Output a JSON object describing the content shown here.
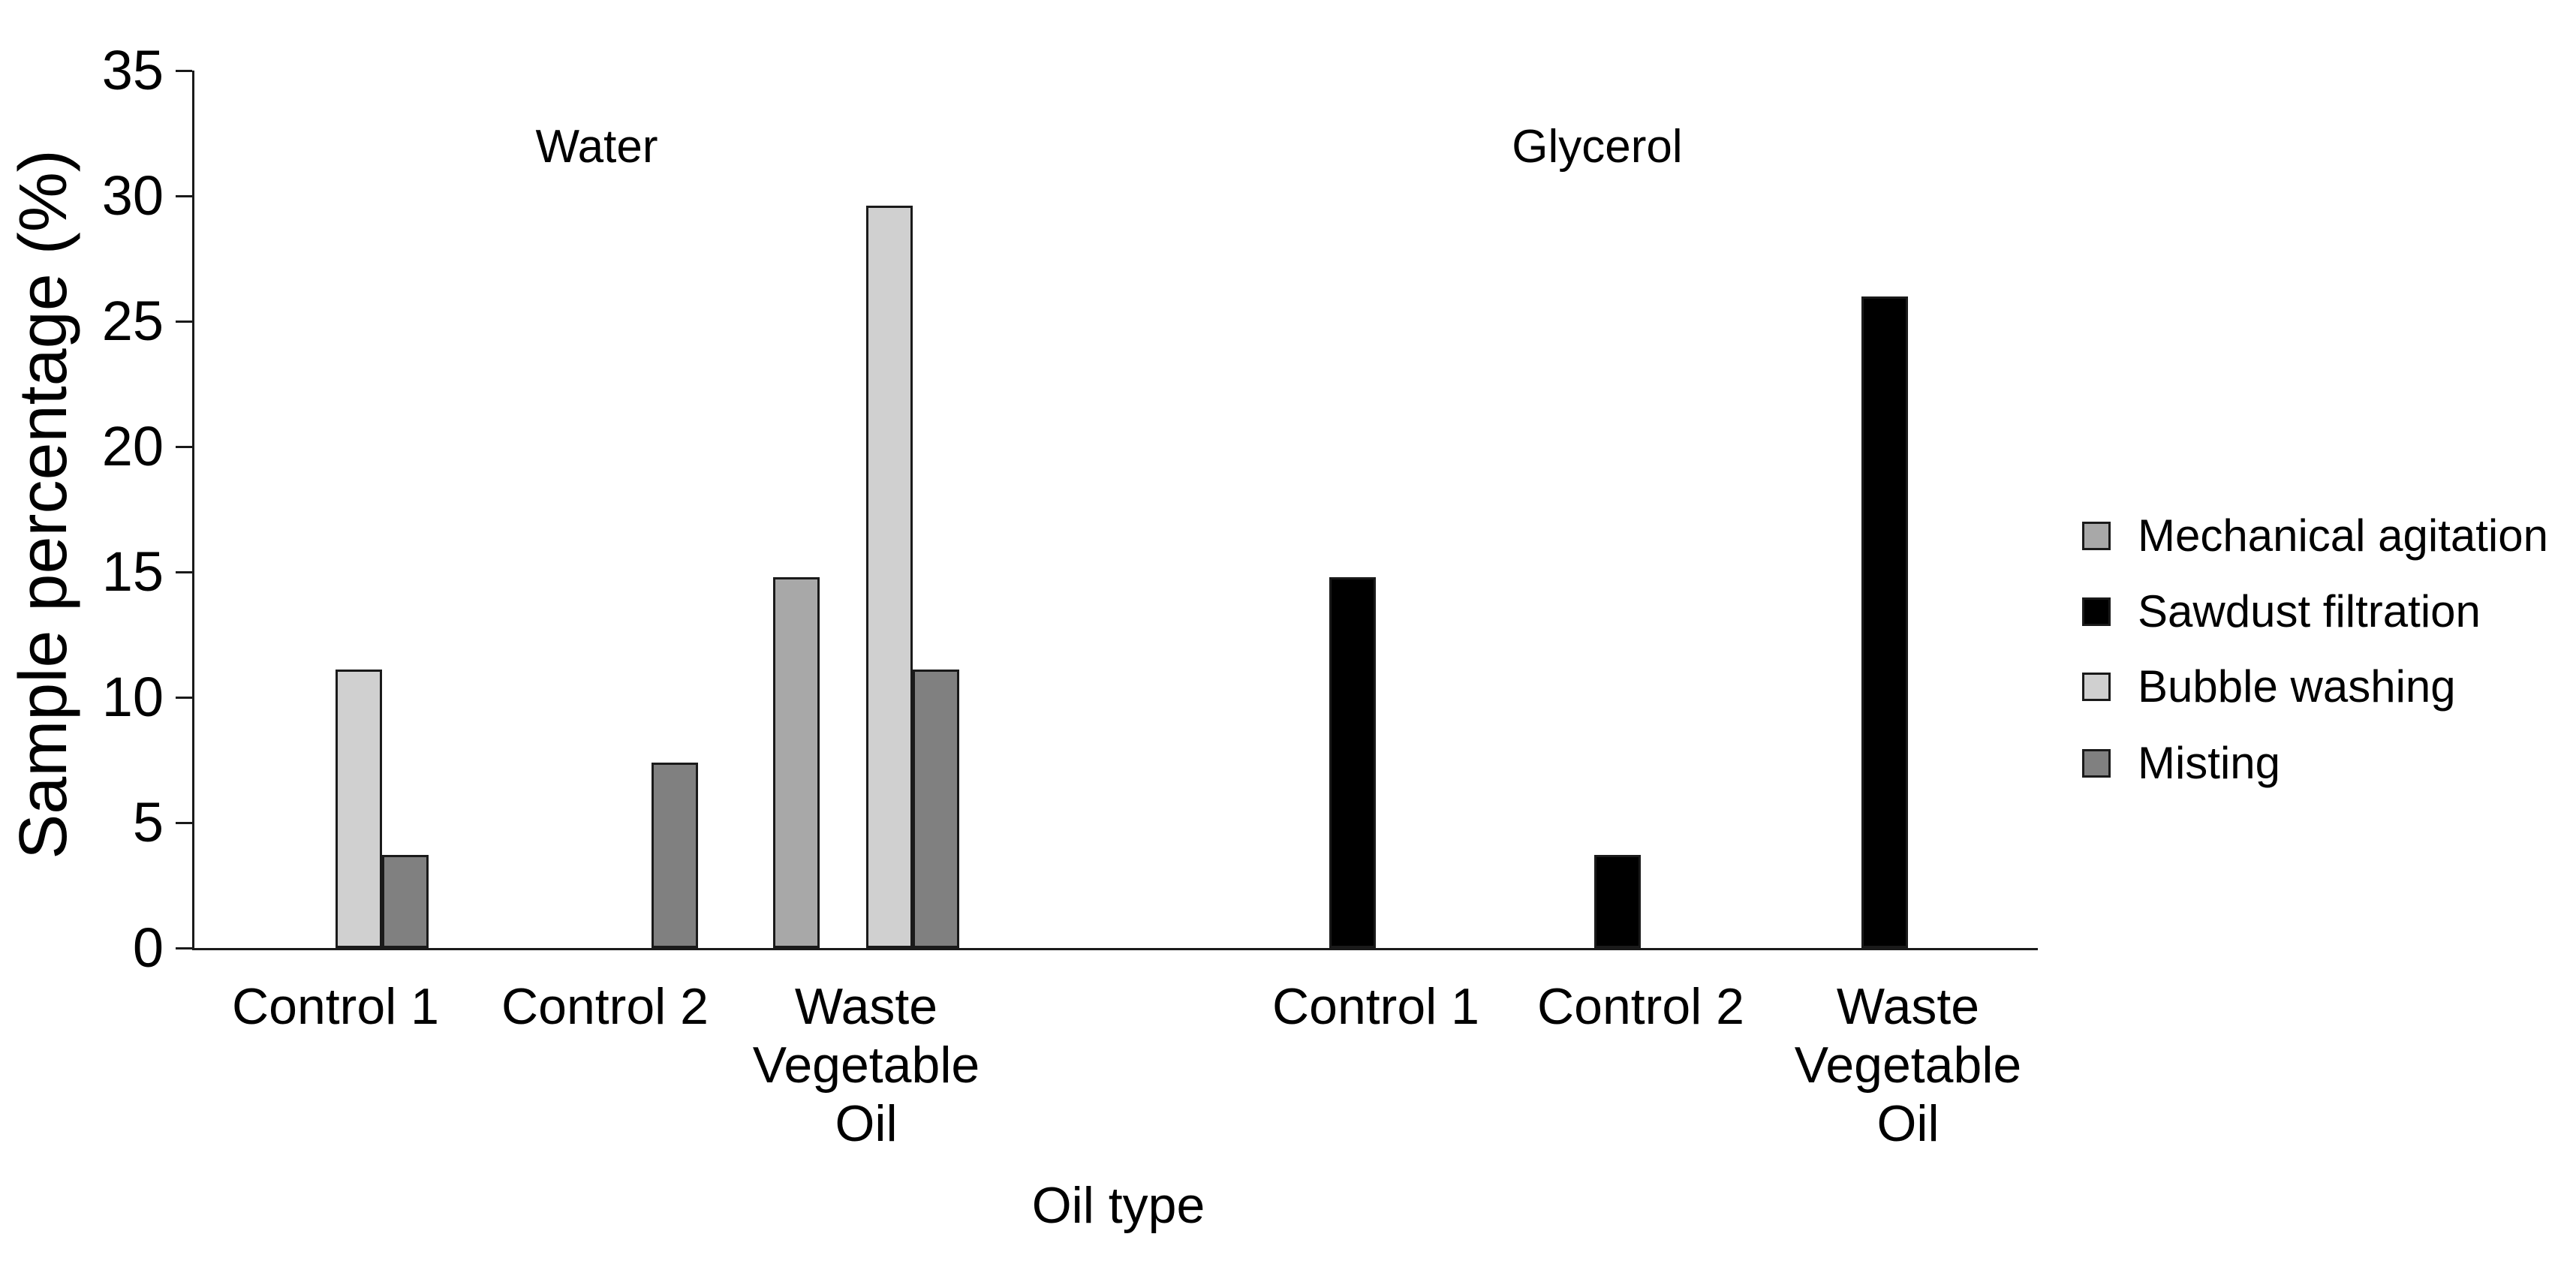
{
  "chart_data": {
    "type": "bar",
    "title": "",
    "ylabel": "Sample percentage (%)",
    "xlabel": "Oil type",
    "ylim": [
      0,
      35
    ],
    "yticks": [
      0,
      5,
      10,
      15,
      20,
      25,
      30,
      35
    ],
    "grid": false,
    "legend_position": "right",
    "group_titles": [
      "Water",
      "Glycerol"
    ],
    "categories": [
      "Control 1",
      "Control 2",
      "Waste Vegetable Oil",
      "Control 1",
      "Control 2",
      "Waste Vegetable Oil"
    ],
    "series": [
      {
        "name": "Mechanical agitation",
        "color": "#a8a8a8",
        "values": [
          0,
          0,
          14.8,
          0,
          0,
          0
        ]
      },
      {
        "name": "Sawdust filtration",
        "color": "#000000",
        "values": [
          0,
          0,
          0,
          14.8,
          3.7,
          26
        ]
      },
      {
        "name": "Bubble washing",
        "color": "#d0d0d0",
        "values": [
          11.1,
          0,
          29.6,
          0,
          0,
          0
        ]
      },
      {
        "name": "Misting",
        "color": "#808080",
        "values": [
          3.7,
          7.4,
          11.1,
          0,
          0,
          0
        ]
      }
    ]
  },
  "colors": {
    "axis": "#1a1a1a",
    "background": "#ffffff",
    "text": "#000000"
  }
}
